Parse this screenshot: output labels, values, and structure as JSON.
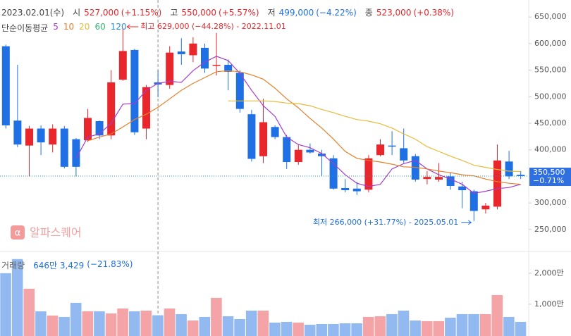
{
  "header": {
    "date": "2023.02.01(수)",
    "items": [
      {
        "label": "시",
        "value": "527,000",
        "change": "(+1.15%)",
        "color": "#e8262b"
      },
      {
        "label": "고",
        "value": "550,000",
        "change": "(+5.57%)",
        "color": "#e8262b"
      },
      {
        "label": "저",
        "value": "499,000",
        "change": "(−4.22%)",
        "color": "#1f6fe5"
      },
      {
        "label": "종",
        "value": "523,000",
        "change": "(+0.38%)",
        "color": "#e8262b"
      }
    ]
  },
  "watermark": "알파스퀘어",
  "chart_data": [
    {
      "type": "candlestick",
      "up_color": "#e8262b",
      "down_color": "#1f6fe5",
      "open": [
        595000,
        455000,
        408000,
        440000,
        410000,
        440000,
        420000,
        418000,
        454000,
        427000,
        532000,
        588000,
        440000,
        527000,
        522000,
        585000,
        578000,
        592000,
        558000,
        560000,
        545000,
        467000,
        388000,
        443000,
        424000,
        377000,
        400000,
        393000,
        384000,
        328000,
        327000,
        325000,
        390000,
        408000,
        403000,
        388000,
        345000,
        344000,
        350000,
        331000,
        322000,
        288000,
        293000,
        378000,
        353000
      ],
      "high": [
        598000,
        560000,
        445000,
        446000,
        448000,
        445000,
        422000,
        477000,
        455000,
        550000,
        629000,
        590000,
        522000,
        550000,
        595000,
        610000,
        612000,
        600000,
        620000,
        570000,
        550000,
        475000,
        496000,
        446000,
        428000,
        410000,
        412000,
        400000,
        390000,
        345000,
        340000,
        390000,
        420000,
        435000,
        440000,
        392000,
        360000,
        375000,
        358000,
        340000,
        325000,
        300000,
        410000,
        398000,
        360000
      ],
      "low": [
        440000,
        405000,
        350000,
        390000,
        395000,
        365000,
        350000,
        415000,
        420000,
        420000,
        530000,
        428000,
        420000,
        499000,
        515000,
        560000,
        565000,
        545000,
        540000,
        512000,
        470000,
        378000,
        375000,
        420000,
        364000,
        372000,
        393000,
        350000,
        325000,
        320000,
        315000,
        320000,
        388000,
        390000,
        375000,
        340000,
        335000,
        340000,
        325000,
        290000,
        266000,
        280000,
        288000,
        345000,
        345000
      ],
      "close": [
        446000,
        410000,
        440000,
        414000,
        440000,
        368000,
        368000,
        460000,
        427000,
        527000,
        586000,
        433000,
        518000,
        523000,
        583000,
        580000,
        600000,
        553000,
        560000,
        547000,
        477000,
        383000,
        452000,
        424000,
        377000,
        400000,
        395000,
        388000,
        327000,
        324000,
        322000,
        384000,
        410000,
        406000,
        380000,
        344000,
        349000,
        349000,
        332000,
        324000,
        285000,
        295000,
        380000,
        350000,
        350500
      ],
      "ylim": [
        210000,
        682000
      ],
      "yticks": [
        {
          "value": 650000,
          "label": "650,000"
        },
        {
          "value": 600000,
          "label": "600,000"
        },
        {
          "value": 550000,
          "label": "550,000"
        },
        {
          "value": 500000,
          "label": "500,000"
        },
        {
          "value": 450000,
          "label": "450,000"
        },
        {
          "value": 400000,
          "label": "400,000"
        },
        {
          "value": 350000,
          "label": "350,000"
        },
        {
          "value": 300000,
          "label": "300,000"
        },
        {
          "value": 250000,
          "label": "250,000"
        }
      ],
      "price_label": {
        "value": 350500,
        "label": "350,500",
        "change": "−0.71%"
      },
      "annotations": {
        "high": "최고 629,000 (−44.28%) - 2022.11.01",
        "low": "최저 266,000 (+31.77%) - 2025.05.01"
      },
      "legend_title": "단순이동평균",
      "series": [
        {
          "name": "5",
          "color": "#a33ccc",
          "values": [
            null,
            null,
            null,
            null,
            null,
            null,
            384000,
            424000,
            430000,
            450000,
            486000,
            487000,
            512000,
            525000,
            529000,
            527000,
            549000,
            565000,
            576000,
            568000,
            544000,
            512000,
            483000,
            463000,
            424000,
            410000,
            404000,
            393000,
            374000,
            353000,
            337000,
            331000,
            335000,
            364000,
            374000,
            380000,
            364000,
            353000,
            345000,
            335000,
            318000,
            322000,
            327000,
            329000,
            335000
          ]
        },
        {
          "name": "10",
          "color": "#e57f2a",
          "values": [
            null,
            null,
            null,
            null,
            null,
            null,
            null,
            417000,
            424000,
            430000,
            443000,
            457000,
            467000,
            480000,
            496000,
            512000,
            525000,
            536000,
            547000,
            549000,
            547000,
            541000,
            533000,
            516000,
            496000,
            479000,
            459000,
            441000,
            420000,
            397000,
            384000,
            380000,
            377000,
            373000,
            368000,
            367000,
            364000,
            360000,
            357000,
            353000,
            351000,
            345000,
            340000,
            337000,
            335000
          ]
        },
        {
          "name": "20",
          "color": "#e6bb3c",
          "values": [
            null,
            null,
            null,
            null,
            null,
            null,
            null,
            null,
            null,
            null,
            null,
            null,
            null,
            null,
            null,
            null,
            null,
            null,
            null,
            492000,
            492000,
            492000,
            492000,
            491000,
            488000,
            487000,
            483000,
            476000,
            470000,
            463000,
            457000,
            454000,
            449000,
            441000,
            430000,
            420000,
            406000,
            397000,
            388000,
            380000,
            371000,
            367000,
            363000,
            360000,
            359000
          ]
        },
        {
          "name": "60",
          "color": "#2eb872"
        },
        {
          "name": "120",
          "color": "#2a8bdc"
        }
      ]
    },
    {
      "type": "bar",
      "title": "거래량",
      "value_text": "646만 3,429",
      "change": "(−21.83%)",
      "values": [
        2000,
        2455,
        1500,
        773,
        636,
        591,
        1045,
        773,
        773,
        705,
        864,
        773,
        795,
        646,
        864,
        682,
        477,
        591,
        1205,
        614,
        523,
        795,
        795,
        409,
        432,
        409,
        341,
        364,
        364,
        386,
        386,
        591,
        614,
        682,
        795,
        477,
        455,
        455,
        568,
        682,
        682,
        682,
        1295,
        591,
        432
      ],
      "up_color": "#f4a3a6",
      "down_color": "#93b9f1",
      "ylim": [
        0,
        2700
      ],
      "yticks": [
        {
          "value": 2000,
          "label": "2,000만"
        },
        {
          "value": 1000,
          "label": "1,000만"
        }
      ]
    }
  ]
}
